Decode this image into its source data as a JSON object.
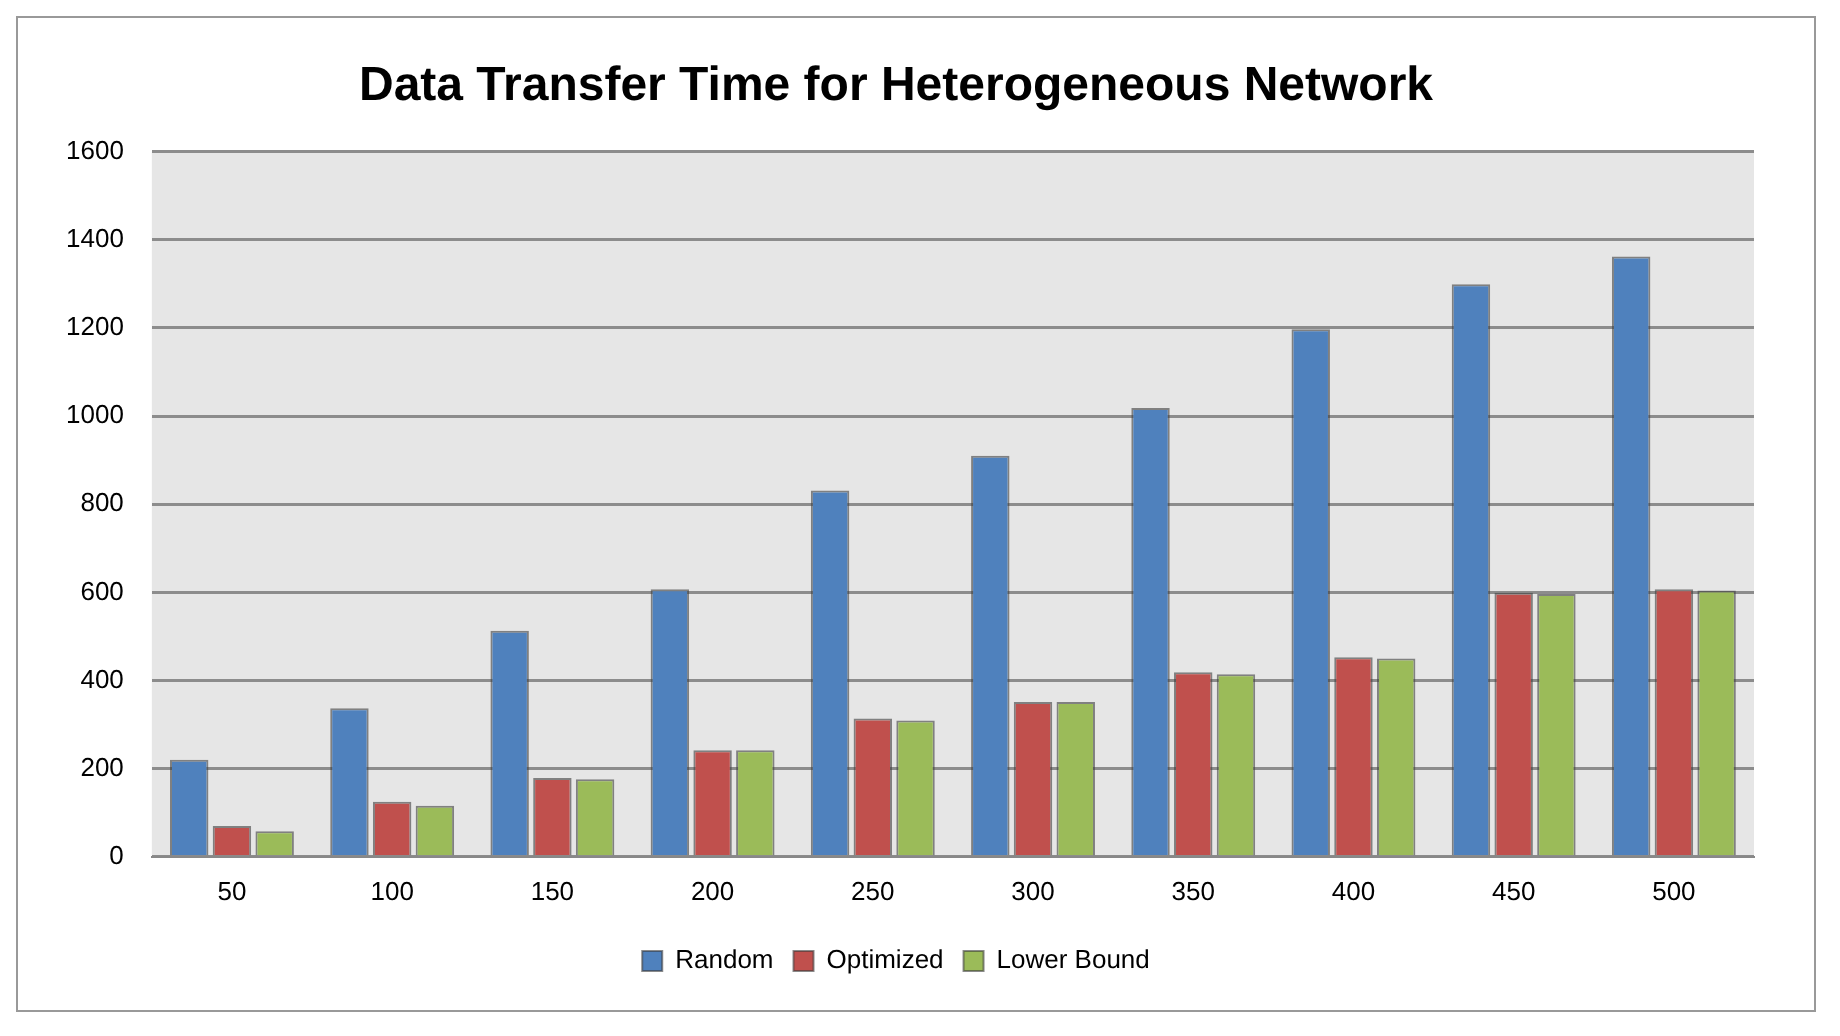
{
  "chart_data": {
    "type": "bar",
    "title": "Data Transfer Time for Heterogeneous Network",
    "categories": [
      "50",
      "100",
      "150",
      "200",
      "250",
      "300",
      "350",
      "400",
      "450",
      "500"
    ],
    "series": [
      {
        "name": "Random",
        "color": "#4f81bd",
        "values": [
          220,
          337,
          513,
          607,
          831,
          910,
          1018,
          1197,
          1299,
          1362
        ]
      },
      {
        "name": "Optimized",
        "color": "#c0504d",
        "values": [
          70,
          125,
          179,
          242,
          314,
          351,
          419,
          453,
          599,
          607
        ]
      },
      {
        "name": "Lower Bound",
        "color": "#9bbb59",
        "values": [
          58,
          116,
          176,
          242,
          309,
          351,
          414,
          450,
          596,
          604
        ]
      }
    ],
    "ylim": [
      0,
      1600
    ],
    "yticks": [
      0,
      200,
      400,
      600,
      800,
      1000,
      1200,
      1400,
      1600
    ],
    "grid": "y",
    "legend": "bottom"
  }
}
